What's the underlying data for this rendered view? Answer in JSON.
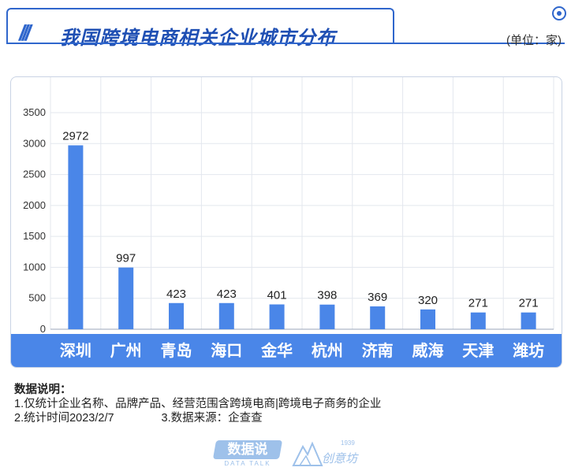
{
  "header": {
    "title": "我国跨境电商相关企业城市分布",
    "slashes": "///",
    "unit": "(单位：家)"
  },
  "chart_data": {
    "type": "bar",
    "categories": [
      "深圳",
      "广州",
      "青岛",
      "海口",
      "金华",
      "杭州",
      "济南",
      "威海",
      "天津",
      "潍坊"
    ],
    "values": [
      2972,
      997,
      423,
      423,
      401,
      398,
      369,
      320,
      271,
      271
    ],
    "ylim": [
      0,
      3500
    ],
    "yticks": [
      "0",
      "500",
      "1000",
      "1500",
      "2000",
      "2500",
      "3000",
      "3500"
    ],
    "grid": true,
    "bar_color": "#4a86e8",
    "category_band_color": "#4a86e8"
  },
  "notes": {
    "heading": "数据说明：",
    "line1": "1.仅统计企业名称、品牌产品、经营范围含跨境电商|跨境电子商务的企业",
    "line2a": "2.统计时间2023/2/7",
    "line2b": "3.数据来源：企查查"
  },
  "footer": {
    "logo_left": "数据说",
    "logo_left_sub": "DATA TALK",
    "logo_right": "创意坊",
    "logo_right_year": "1939"
  },
  "colors": {
    "accent": "#2f66cc",
    "bar": "#4a86e8"
  }
}
